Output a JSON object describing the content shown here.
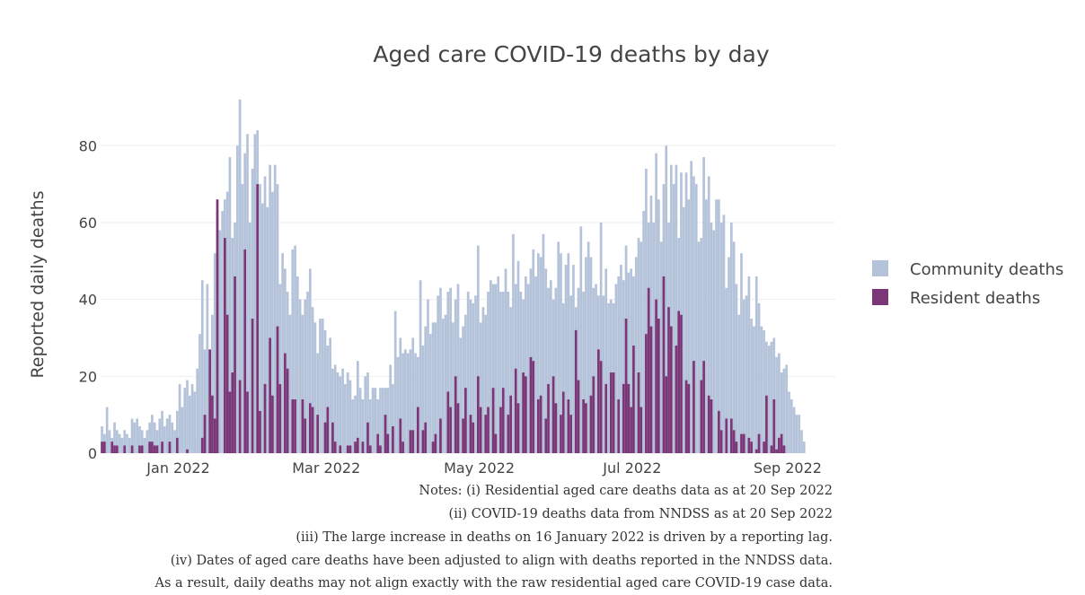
{
  "chart_data": {
    "type": "bar",
    "barmode": "overlay",
    "title": "Aged care COVID-19 deaths by day",
    "xlabel": "",
    "ylabel": "Reported daily deaths",
    "x_start": "2021-12-01",
    "x_range": [
      "2021-12-01",
      "2022-09-19"
    ],
    "x_ticks": [
      "Jan 2022",
      "Mar 2022",
      "May 2022",
      "Jul 2022",
      "Sep 2022"
    ],
    "y_ticks": [
      "0",
      "20",
      "40",
      "60",
      "80"
    ],
    "ylim": [
      0,
      95
    ],
    "grid": true,
    "legend_position": "right",
    "colors": {
      "community": "#b4c3d9",
      "resident": "#7b3677"
    },
    "series": [
      {
        "name": "Community deaths",
        "values": [
          7,
          5,
          12,
          6,
          4,
          8,
          6,
          5,
          4,
          6,
          5,
          4,
          9,
          8,
          9,
          7,
          6,
          4,
          6,
          8,
          10,
          8,
          6,
          9,
          11,
          7,
          9,
          10,
          8,
          6,
          11,
          18,
          12,
          17,
          19,
          15,
          18,
          16,
          22,
          31,
          45,
          27,
          44,
          24,
          36,
          52,
          63,
          58,
          63,
          66,
          68,
          77,
          56,
          60,
          80,
          92,
          70,
          78,
          83,
          60,
          74,
          83,
          84,
          70,
          65,
          72,
          64,
          75,
          68,
          75,
          70,
          44,
          52,
          48,
          42,
          36,
          53,
          54,
          46,
          40,
          36,
          40,
          42,
          48,
          38,
          34,
          26,
          35,
          35,
          32,
          28,
          30,
          22,
          23,
          21,
          20,
          22,
          18,
          21,
          19,
          14,
          15,
          24,
          17,
          14,
          20,
          21,
          14,
          17,
          17,
          14,
          17,
          17,
          17,
          17,
          23,
          18,
          37,
          25,
          30,
          26,
          27,
          26,
          27,
          30,
          26,
          25,
          45,
          28,
          33,
          40,
          31,
          34,
          34,
          41,
          43,
          35,
          36,
          42,
          43,
          34,
          40,
          44,
          30,
          33,
          36,
          42,
          40,
          39,
          41,
          54,
          34,
          38,
          36,
          42,
          45,
          44,
          44,
          46,
          42,
          42,
          48,
          42,
          38,
          57,
          44,
          50,
          42,
          40,
          46,
          44,
          48,
          53,
          46,
          52,
          51,
          57,
          48,
          43,
          45,
          40,
          43,
          55,
          52,
          39,
          49,
          52,
          41,
          49,
          38,
          43,
          59,
          42,
          51,
          55,
          51,
          43,
          44,
          41,
          60,
          41,
          48,
          39,
          40,
          39,
          44,
          46,
          49,
          45,
          54,
          47,
          48,
          46,
          51,
          56,
          55,
          63,
          74,
          60,
          67,
          60,
          78,
          66,
          55,
          70,
          80,
          60,
          75,
          70,
          75,
          56,
          73,
          64,
          73,
          66,
          76,
          72,
          70,
          55,
          56,
          77,
          66,
          72,
          60,
          58,
          66,
          66,
          60,
          62,
          43,
          51,
          60,
          55,
          44,
          36,
          52,
          40,
          41,
          46,
          35,
          33,
          46,
          39,
          33,
          32,
          29,
          28,
          29,
          30,
          25,
          26,
          21,
          22,
          23,
          16,
          14,
          12,
          10,
          10,
          6,
          3
        ],
        "color": "#b4c3d9"
      },
      {
        "name": "Resident deaths",
        "values": [
          3,
          3,
          0,
          0,
          3,
          2,
          2,
          0,
          0,
          2,
          0,
          0,
          2,
          0,
          0,
          2,
          2,
          0,
          0,
          3,
          3,
          2,
          2,
          0,
          3,
          0,
          0,
          3,
          0,
          0,
          4,
          0,
          0,
          0,
          1,
          0,
          0,
          0,
          0,
          0,
          4,
          10,
          0,
          27,
          15,
          9,
          66,
          0,
          0,
          56,
          36,
          16,
          21,
          46,
          0,
          19,
          0,
          53,
          16,
          0,
          35,
          0,
          70,
          11,
          0,
          18,
          0,
          30,
          15,
          0,
          33,
          18,
          0,
          26,
          22,
          0,
          14,
          14,
          0,
          0,
          14,
          9,
          0,
          13,
          12,
          0,
          10,
          0,
          0,
          8,
          12,
          0,
          8,
          3,
          0,
          2,
          0,
          0,
          2,
          2,
          0,
          3,
          4,
          0,
          3,
          0,
          8,
          2,
          0,
          0,
          5,
          2,
          0,
          10,
          5,
          0,
          7,
          0,
          0,
          9,
          3,
          0,
          0,
          6,
          6,
          0,
          12,
          0,
          6,
          8,
          0,
          0,
          3,
          5,
          0,
          9,
          0,
          0,
          16,
          12,
          0,
          20,
          13,
          0,
          9,
          17,
          0,
          10,
          8,
          0,
          20,
          12,
          0,
          10,
          12,
          0,
          17,
          5,
          0,
          12,
          17,
          0,
          10,
          15,
          0,
          22,
          13,
          0,
          21,
          20,
          0,
          25,
          24,
          0,
          14,
          15,
          0,
          9,
          18,
          0,
          20,
          13,
          0,
          10,
          16,
          0,
          14,
          10,
          0,
          32,
          19,
          0,
          14,
          13,
          0,
          15,
          20,
          0,
          27,
          24,
          0,
          18,
          0,
          21,
          21,
          0,
          14,
          0,
          18,
          35,
          18,
          12,
          28,
          0,
          21,
          12,
          0,
          31,
          43,
          33,
          0,
          40,
          35,
          0,
          46,
          20,
          38,
          33,
          0,
          28,
          37,
          36,
          0,
          19,
          18,
          0,
          24,
          0,
          0,
          19,
          24,
          0,
          15,
          14,
          0,
          0,
          11,
          6,
          0,
          9,
          0,
          9,
          6,
          3,
          0,
          5,
          5,
          0,
          4,
          3,
          0,
          1,
          5,
          0,
          3,
          15,
          0,
          2,
          14,
          1,
          4,
          5,
          2
        ],
        "color": "#7b3677"
      }
    ],
    "notes": [
      "Notes: (i) Residential aged care deaths data as at 20 Sep 2022",
      "(ii) COVID-19 deaths data from NNDSS as at 20 Sep 2022",
      "(iii) The large increase in deaths on 16 January 2022 is driven by a reporting lag.",
      "(iv) Dates of aged care deaths have been adjusted to align with deaths reported in the NNDSS data.",
      "As a result, daily deaths may not align exactly with the raw residential aged care COVID-19 case data."
    ]
  }
}
